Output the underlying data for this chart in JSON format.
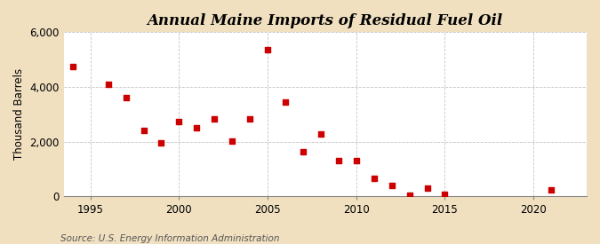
{
  "title": "Annual Maine Imports of Residual Fuel Oil",
  "ylabel": "Thousand Barrels",
  "source": "Source: U.S. Energy Information Administration",
  "years": [
    1994,
    1996,
    1997,
    1998,
    1999,
    2000,
    2001,
    2002,
    2003,
    2004,
    2005,
    2006,
    2007,
    2008,
    2009,
    2010,
    2011,
    2012,
    2013,
    2014,
    2015,
    2021
  ],
  "values": [
    4750,
    4100,
    3600,
    2400,
    1950,
    2750,
    2500,
    2850,
    2030,
    2850,
    5350,
    3450,
    1650,
    2300,
    1300,
    1300,
    650,
    400,
    60,
    300,
    80,
    230
  ],
  "marker_color": "#cc0000",
  "marker_size": 4,
  "plot_bg_color": "#ffffff",
  "fig_bg_color": "#f0e0c0",
  "grid_color": "#aaaaaa",
  "ylim": [
    0,
    6000
  ],
  "yticks": [
    0,
    2000,
    4000,
    6000
  ],
  "xlim": [
    1993.5,
    2023
  ],
  "xticks": [
    1995,
    2000,
    2005,
    2010,
    2015,
    2020
  ],
  "title_fontsize": 12,
  "label_fontsize": 8.5,
  "source_fontsize": 7.5
}
